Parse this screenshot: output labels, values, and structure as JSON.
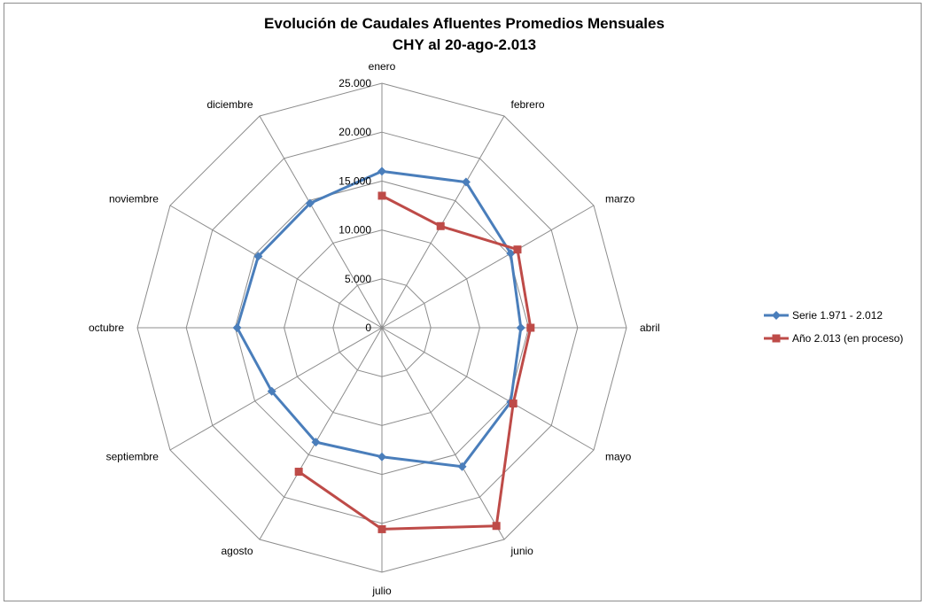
{
  "chart_data": {
    "type": "radar",
    "title": "Evolución de Caudales Afluentes Promedios Mensuales",
    "subtitle": "CHY al 20-ago-2.013",
    "categories": [
      "enero",
      "febrero",
      "marzo",
      "abril",
      "mayo",
      "junio",
      "julio",
      "agosto",
      "septiembre",
      "octubre",
      "noviembre",
      "diciembre"
    ],
    "rlim": [
      0,
      25000
    ],
    "ticks": [
      0,
      5000,
      10000,
      15000,
      20000,
      25000
    ],
    "tick_labels": [
      "0",
      "5.000",
      "10.000",
      "15.000",
      "20.000",
      "25.000"
    ],
    "grid": true,
    "legend_position": "right",
    "series": [
      {
        "name": "Serie 1.971 - 2.012",
        "color": "#4a7ebb",
        "marker": "diamond",
        "values": [
          16000,
          17200,
          15200,
          14200,
          15200,
          16400,
          13200,
          13500,
          13000,
          14800,
          14600,
          14700
        ]
      },
      {
        "name": "Año 2.013 (en proceso)",
        "color": "#be4b48",
        "marker": "square",
        "values": [
          13500,
          12000,
          16000,
          15200,
          15500,
          23400,
          20600,
          17000,
          null,
          null,
          null,
          null
        ]
      }
    ]
  }
}
